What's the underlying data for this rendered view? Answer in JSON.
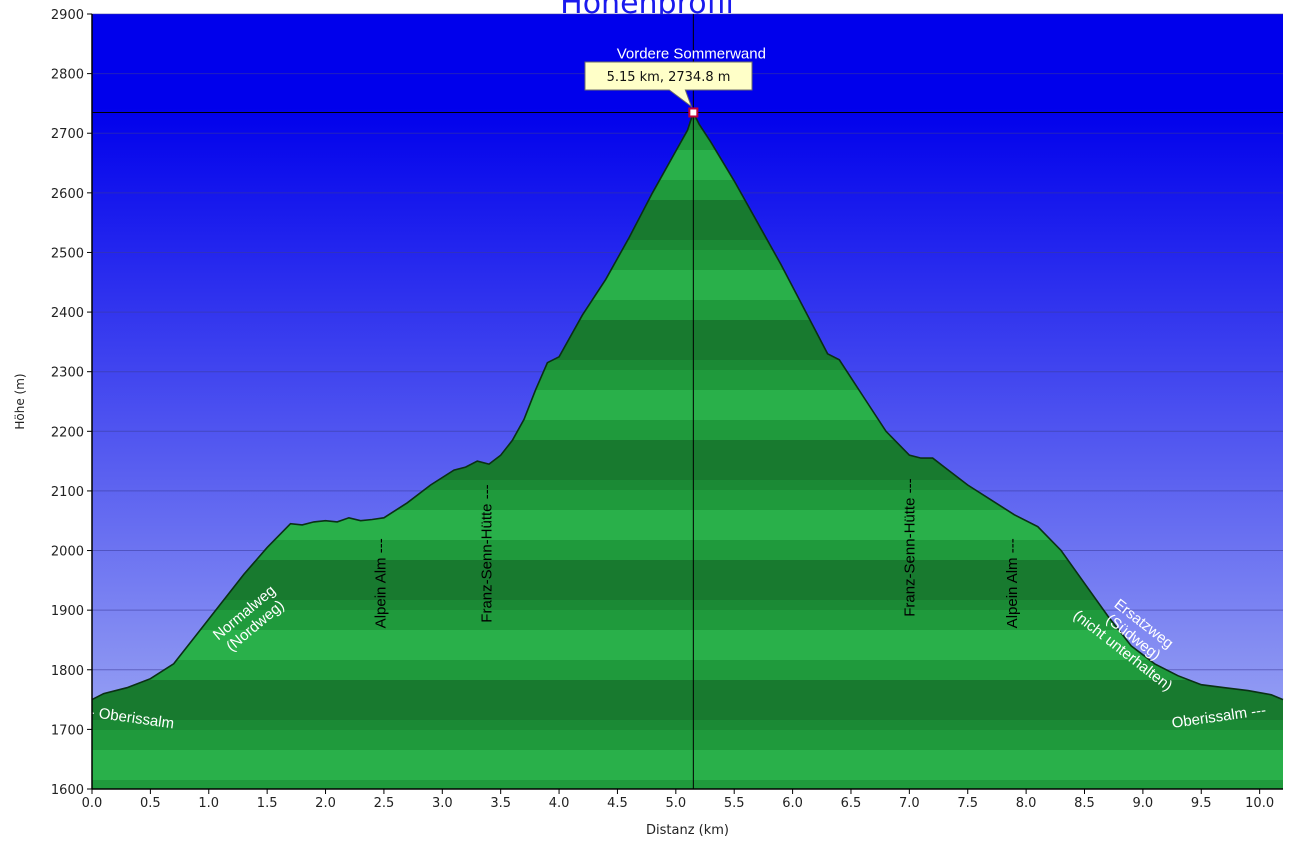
{
  "title": "Höhenprofil",
  "chart_data": {
    "type": "area",
    "xlabel": "Distanz  (km)",
    "ylabel": "Höhe (m)",
    "xlim": [
      0,
      10.2
    ],
    "ylim": [
      1600,
      2900
    ],
    "x_ticks": [
      "0.0",
      "0.5",
      "1.0",
      "1.5",
      "2.0",
      "2.5",
      "3.0",
      "3.5",
      "4.0",
      "4.5",
      "5.0",
      "5.5",
      "6.0",
      "6.5",
      "7.0",
      "7.5",
      "8.0",
      "8.5",
      "9.0",
      "9.5",
      "10.0"
    ],
    "y_ticks": [
      "1600",
      "1700",
      "1800",
      "1900",
      "2000",
      "2100",
      "2200",
      "2300",
      "2400",
      "2500",
      "2600",
      "2700",
      "2800",
      "2900"
    ],
    "grid": true,
    "colors": {
      "fill": "#1f9a3c",
      "sky_top": "#0000ee",
      "sky_bottom": "#9ba8f2",
      "outline": "#0a3014"
    },
    "series": [
      {
        "x": [
          0.0,
          0.1,
          0.3,
          0.5,
          0.7,
          0.9,
          1.1,
          1.3,
          1.5,
          1.7,
          1.8,
          1.9,
          2.0,
          2.1,
          2.2,
          2.3,
          2.4,
          2.5,
          2.7,
          2.9,
          3.1,
          3.2,
          3.3,
          3.4,
          3.5,
          3.6,
          3.7,
          3.8,
          3.9,
          4.0,
          4.2,
          4.4,
          4.6,
          4.8,
          5.0,
          5.1,
          5.15,
          5.2,
          5.3,
          5.5,
          5.7,
          5.9,
          6.1,
          6.3,
          6.4,
          6.6,
          6.8,
          7.0,
          7.1,
          7.2,
          7.3,
          7.5,
          7.7,
          7.9,
          8.1,
          8.3,
          8.5,
          8.7,
          8.9,
          9.1,
          9.3,
          9.5,
          9.7,
          9.9,
          10.1,
          10.2
        ],
        "y": [
          1750,
          1760,
          1770,
          1785,
          1810,
          1860,
          1910,
          1960,
          2005,
          2045,
          2043,
          2048,
          2050,
          2048,
          2055,
          2050,
          2052,
          2055,
          2080,
          2110,
          2135,
          2140,
          2150,
          2145,
          2160,
          2185,
          2220,
          2270,
          2315,
          2325,
          2395,
          2455,
          2525,
          2600,
          2670,
          2705,
          2734.8,
          2715,
          2685,
          2620,
          2550,
          2480,
          2405,
          2330,
          2320,
          2260,
          2200,
          2160,
          2155,
          2155,
          2140,
          2110,
          2085,
          2060,
          2040,
          2000,
          1945,
          1890,
          1840,
          1810,
          1790,
          1775,
          1770,
          1765,
          1758,
          1750
        ]
      }
    ],
    "annotations": [
      {
        "text": "Vordere Sommerwand",
        "x": 5.15,
        "y": 2834
      },
      {
        "text": "5.15 km, 2734.8 m",
        "x": 5.15,
        "y": 2734.8
      }
    ],
    "marker": {
      "x": 5.15,
      "y": 2734.8
    },
    "labels": [
      {
        "text": "--- Oberissalm",
        "x": 0.3,
        "y": 1721,
        "rotate": 8,
        "lines": null
      },
      {
        "text": "Normalweg",
        "lines": [
          "Normalweg",
          "(Nordweg)"
        ],
        "x": 1.35,
        "y": 1885,
        "rotate": -40
      },
      {
        "text": "Alpein Alm ---",
        "x": 2.47,
        "y": 1945,
        "rotate": -90,
        "lines": null
      },
      {
        "text": "Franz-Senn-Hütte ---",
        "x": 3.38,
        "y": 1995,
        "rotate": -90,
        "lines": null
      },
      {
        "text": "Franz-Senn-Hütte ---",
        "x": 7.0,
        "y": 2005,
        "rotate": -90,
        "lines": null
      },
      {
        "text": "Alpein Alm ---",
        "x": 7.88,
        "y": 1945,
        "rotate": -90,
        "lines": null
      },
      {
        "text": "Ersatzweg",
        "lines": [
          "Ersatzweg",
          "(Südweg)",
          "(nicht unterhalten)"
        ],
        "x": 8.92,
        "y": 1855,
        "rotate": 38
      },
      {
        "text": "Oberissalm ---",
        "x": 9.65,
        "y": 1722,
        "rotate": -8,
        "lines": null
      }
    ]
  }
}
